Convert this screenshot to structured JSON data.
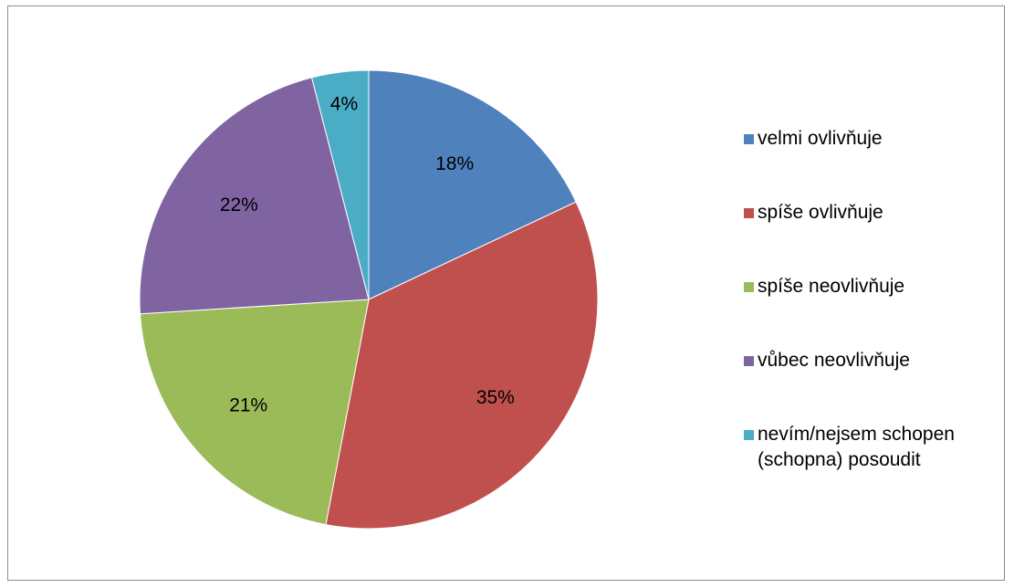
{
  "chart_data": {
    "type": "pie",
    "categories": [
      "velmi ovlivňuje",
      "spíše ovlivňuje",
      "spíše neovlivňuje",
      "vůbec neovlivňuje",
      "nevím/nejsem schopen (schopna) posoudit"
    ],
    "values": [
      18,
      35,
      21,
      22,
      4
    ],
    "labels": [
      "18%",
      "35%",
      "21%",
      "22%",
      "4%"
    ],
    "colors": [
      "#4F81BD",
      "#C0504D",
      "#9BBB59",
      "#8064A2",
      "#4BACC6"
    ],
    "legend": "right",
    "title": ""
  }
}
